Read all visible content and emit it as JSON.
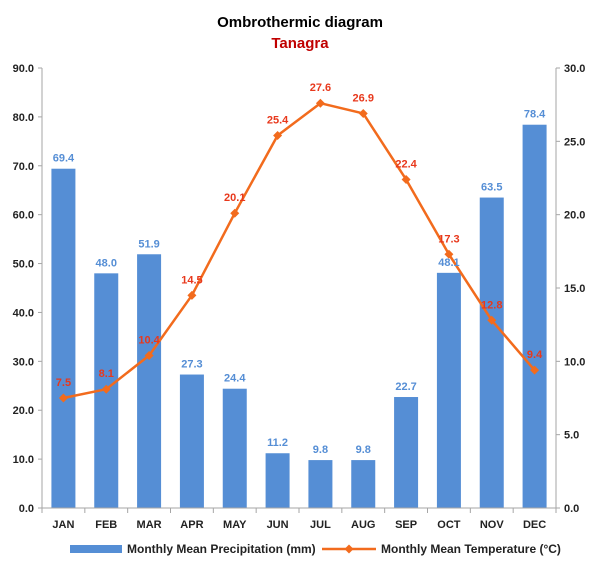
{
  "chart_data": {
    "type": "bar",
    "title": "Ombrothermic diagram",
    "subtitle": "Tanagra",
    "categories": [
      "JAN",
      "FEB",
      "MAR",
      "APR",
      "MAY",
      "JUN",
      "JUL",
      "AUG",
      "SEP",
      "OCT",
      "NOV",
      "DEC"
    ],
    "series": [
      {
        "name": "Monthly Mean Precipitation (mm)",
        "type": "bar",
        "axis": "left",
        "color": "#558ED5",
        "label_color": "#558ED5",
        "values": [
          69.4,
          48.0,
          51.9,
          27.3,
          24.4,
          11.2,
          9.8,
          9.8,
          22.7,
          48.1,
          63.5,
          78.4
        ],
        "labels": [
          "69.4",
          "48.0",
          "51.9",
          "27.3",
          "24.4",
          "11.2",
          "9.8",
          "9.8",
          "22.7",
          "48.1",
          "63.5",
          "78.4"
        ]
      },
      {
        "name": "Monthly Mean Temperature (°C)",
        "type": "line",
        "axis": "right",
        "color": "#F26B1D",
        "label_color": "#E8381C",
        "marker": "diamond",
        "values": [
          7.5,
          8.1,
          10.4,
          14.5,
          20.1,
          25.4,
          27.6,
          26.9,
          22.4,
          17.3,
          12.8,
          9.4
        ],
        "labels": [
          "7.5",
          "8.1",
          "10.4",
          "14.5",
          "20.1",
          "25.4",
          "27.6",
          "26.9",
          "22.4",
          "17.3",
          "12.8",
          "9.4"
        ]
      }
    ],
    "y_left": {
      "min": 0,
      "max": 90,
      "step": 10,
      "ticks": [
        "0.0",
        "10.0",
        "20.0",
        "30.0",
        "40.0",
        "50.0",
        "60.0",
        "70.0",
        "80.0",
        "90.0"
      ]
    },
    "y_right": {
      "min": 0,
      "max": 30,
      "step": 5,
      "ticks": [
        "0.0",
        "5.0",
        "10.0",
        "15.0",
        "20.0",
        "25.0",
        "30.0"
      ]
    },
    "grid": false,
    "legend": "bottom",
    "subtitle_color": "#C00000"
  }
}
